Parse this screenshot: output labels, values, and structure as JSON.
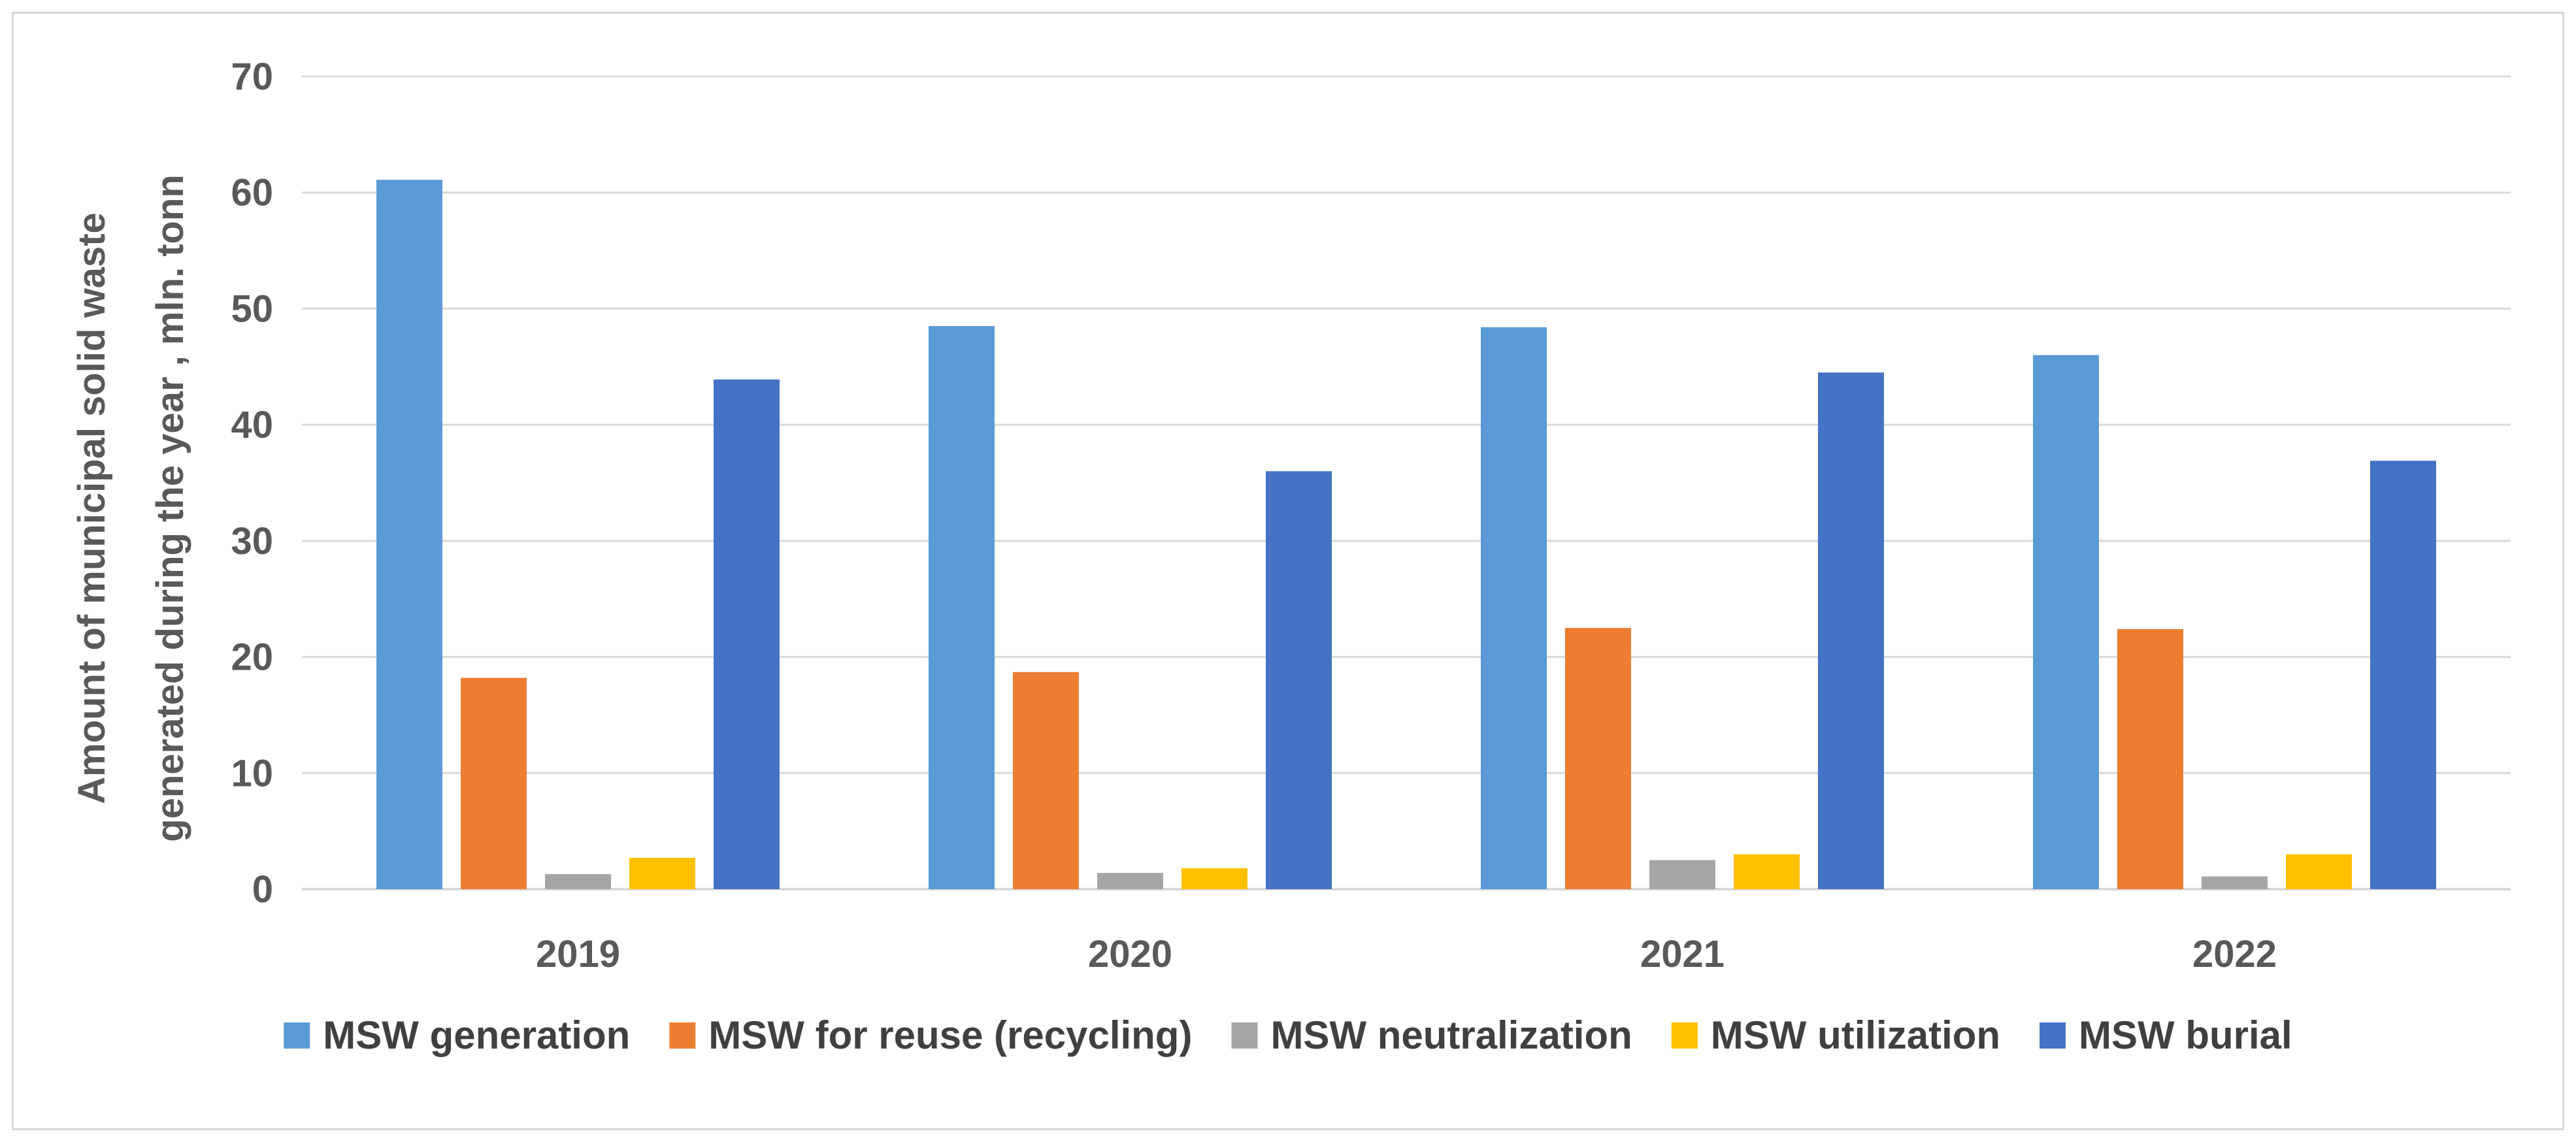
{
  "chart_data": {
    "type": "bar",
    "title": "",
    "xlabel": "",
    "ylabel_lines": [
      "Amount of municipal solid waste",
      "generated during the year , mln. tonn"
    ],
    "categories": [
      "2019",
      "2020",
      "2021",
      "2022"
    ],
    "ylim": [
      0,
      70
    ],
    "yticks": [
      0,
      10,
      20,
      30,
      40,
      50,
      60,
      70
    ],
    "grid": true,
    "legend_position": "bottom",
    "series": [
      {
        "name": "MSW generation",
        "color": "#5B9BD5",
        "values": [
          61.1,
          48.5,
          48.4,
          46.0
        ]
      },
      {
        "name": "MSW for reuse (recycling)",
        "color": "#ED7D31",
        "values": [
          18.2,
          18.7,
          22.5,
          22.4
        ]
      },
      {
        "name": "MSW neutralization",
        "color": "#A5A5A5",
        "values": [
          1.3,
          1.4,
          2.5,
          1.1
        ]
      },
      {
        "name": "MSW utilization",
        "color": "#FFC000",
        "values": [
          2.7,
          1.8,
          3.0,
          3.0
        ]
      },
      {
        "name": "MSW burial",
        "color": "#4472C4",
        "values": [
          43.9,
          36.0,
          44.5,
          36.9
        ]
      }
    ]
  }
}
